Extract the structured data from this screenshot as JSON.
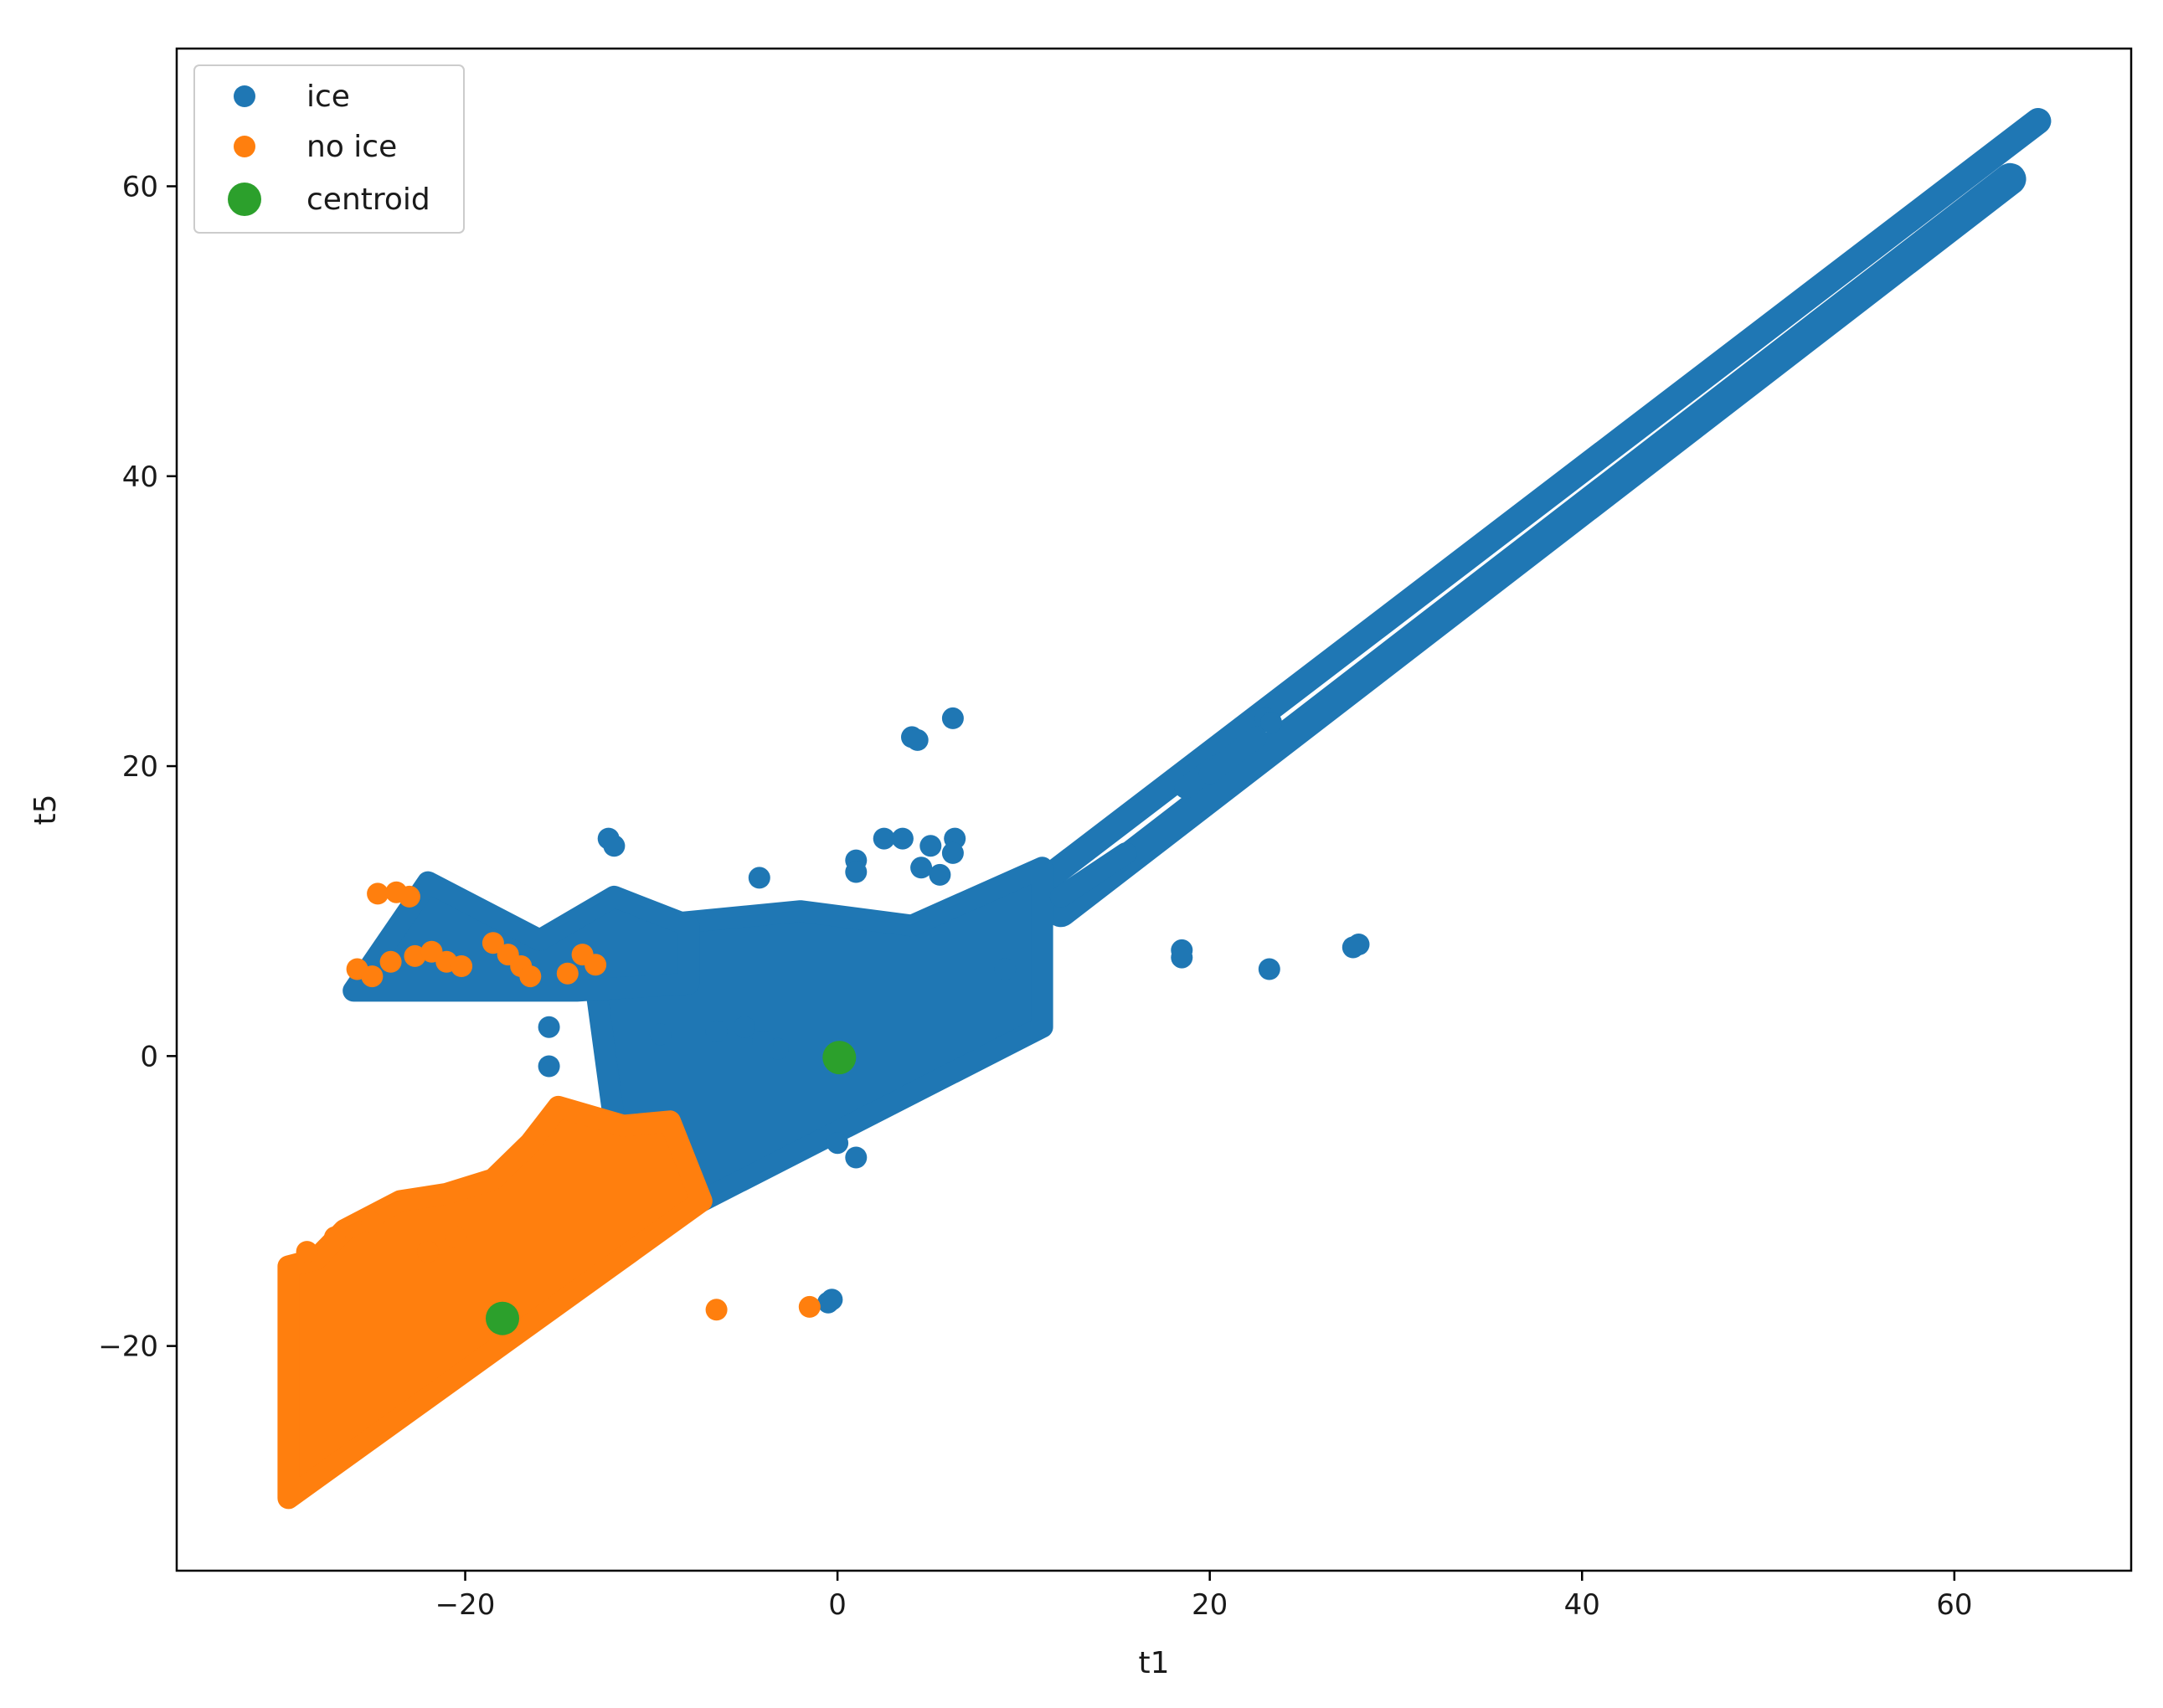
{
  "chart_data": {
    "type": "scatter",
    "title": "",
    "xlabel": "t1",
    "ylabel": "t5",
    "xlim": [
      -35.5,
      69.5
    ],
    "ylim": [
      -35.5,
      69.5
    ],
    "xticks": [
      -20,
      0,
      20,
      40,
      60
    ],
    "yticks": [
      -20,
      0,
      20,
      40,
      60
    ],
    "xtick_labels": [
      "−20",
      "0",
      "20",
      "40",
      "60"
    ],
    "ytick_labels": [
      "−20",
      "0",
      "20",
      "40",
      "60"
    ],
    "grid": false,
    "legend_position": "top-left",
    "series": [
      {
        "name": "ice",
        "color": "#1f77b4",
        "marker": "circle",
        "regions": [
          {
            "shape": "band",
            "from": [
              11,
              12
            ],
            "to": [
              64.5,
              64.5
            ],
            "width": 1.8
          },
          {
            "shape": "band",
            "from": [
              12,
              10
            ],
            "to": [
              63,
              60.5
            ],
            "width": 2.2
          },
          {
            "shape": "polygon",
            "points": [
              [
                -7.3,
                -10
              ],
              [
                11,
                2
              ],
              [
                11,
                13
              ],
              [
                4,
                9
              ],
              [
                -2,
                10
              ],
              [
                -10,
                9
              ],
              [
                -13,
                5
              ],
              [
                -12,
                -4.5
              ]
            ]
          },
          {
            "shape": "polygon",
            "points": [
              [
                -26,
                4.5
              ],
              [
                -22,
                12
              ],
              [
                -16,
                8
              ],
              [
                -12,
                11
              ],
              [
                -8,
                9
              ],
              [
                -8,
                5
              ],
              [
                -14,
                4.5
              ],
              [
                -20,
                4.5
              ]
            ]
          },
          {
            "shape": "band",
            "from": [
              12,
              11
            ],
            "to": [
              15.5,
              14
            ],
            "width": 1.0
          },
          {
            "shape": "band",
            "from": [
              18.7,
              18.5
            ],
            "to": [
              20.3,
              20
            ],
            "width": 0.8
          },
          {
            "shape": "band",
            "from": [
              20,
              19.5
            ],
            "to": [
              22.5,
              22
            ],
            "width": 0.8
          }
        ],
        "points": [
          [
            4,
            22
          ],
          [
            4.3,
            21.8
          ],
          [
            6.2,
            23.3
          ],
          [
            23,
            23.3
          ],
          [
            23.3,
            23
          ],
          [
            -12.3,
            15
          ],
          [
            -12,
            14.5
          ],
          [
            1,
            13.5
          ],
          [
            1,
            12.7
          ],
          [
            -4.2,
            12.3
          ],
          [
            2.5,
            15
          ],
          [
            3.5,
            15
          ],
          [
            5,
            14.5
          ],
          [
            6.3,
            15
          ],
          [
            6.2,
            14
          ],
          [
            4.5,
            13
          ],
          [
            5.5,
            12.5
          ],
          [
            -15.5,
            2
          ],
          [
            -15.5,
            -0.7
          ],
          [
            -9.5,
            1.5
          ],
          [
            -6.5,
            1.7
          ],
          [
            -5,
            2
          ],
          [
            -3.2,
            0.5
          ],
          [
            -4,
            1
          ],
          [
            18.5,
            7.3
          ],
          [
            18.5,
            6.8
          ],
          [
            23.2,
            6
          ],
          [
            27.7,
            7.5
          ],
          [
            28,
            7.7
          ],
          [
            0,
            -6
          ],
          [
            1,
            -7
          ],
          [
            -0.5,
            -17
          ],
          [
            -0.3,
            -16.8
          ],
          [
            9,
            6
          ]
        ]
      },
      {
        "name": "no ice",
        "color": "#ff7f0e",
        "marker": "circle",
        "regions": [
          {
            "shape": "polygon",
            "points": [
              [
                -29.5,
                -30.5
              ],
              [
                -7.3,
                -10
              ],
              [
                -9,
                -4.5
              ],
              [
                -11.5,
                -4.8
              ],
              [
                -15,
                -3.5
              ],
              [
                -16.5,
                -6
              ],
              [
                -18.5,
                -8.5
              ],
              [
                -21,
                -9.5
              ],
              [
                -23.5,
                -10
              ],
              [
                -26.5,
                -12
              ],
              [
                -28,
                -14
              ],
              [
                -29.5,
                -14.5
              ]
            ]
          }
        ],
        "points": [
          [
            -24.7,
            11.2
          ],
          [
            -23.7,
            11.3
          ],
          [
            -23,
            11
          ],
          [
            -25.8,
            6
          ],
          [
            -25,
            5.5
          ],
          [
            -24,
            6.5
          ],
          [
            -22.7,
            6.9
          ],
          [
            -21.8,
            7.2
          ],
          [
            -21,
            6.5
          ],
          [
            -20.2,
            6.2
          ],
          [
            -18.5,
            7.8
          ],
          [
            -17.7,
            7
          ],
          [
            -17,
            6.2
          ],
          [
            -16.5,
            5.5
          ],
          [
            -13.7,
            7
          ],
          [
            -13,
            6.3
          ],
          [
            -14.5,
            5.7
          ],
          [
            -6.5,
            -17.5
          ],
          [
            -1.5,
            -17.3
          ],
          [
            -22,
            -13.5
          ],
          [
            -20.5,
            -12.5
          ],
          [
            -28.5,
            -13.5
          ],
          [
            -27,
            -12.5
          ],
          [
            -25,
            -11.5
          ]
        ]
      },
      {
        "name": "centroid",
        "color": "#2ca02c",
        "marker": "circle",
        "size": "large",
        "points": [
          [
            0.1,
            -0.1
          ],
          [
            -18,
            -18.1
          ]
        ]
      }
    ]
  }
}
